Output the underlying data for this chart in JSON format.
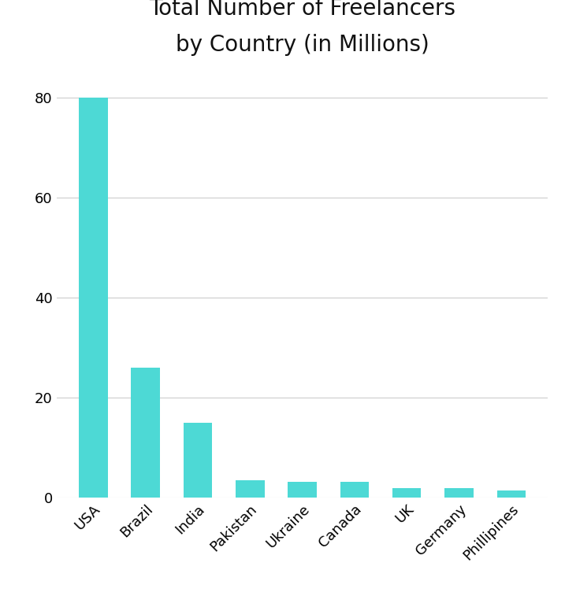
{
  "title": "Total Number of Freelancers\nby Country (in Millions)",
  "categories": [
    "USA",
    "Brazil",
    "India",
    "Pakistan",
    "Ukraine",
    "Canada",
    "UK",
    "Germany",
    "Phillipines"
  ],
  "values": [
    80,
    26,
    15,
    3.5,
    3.2,
    3.2,
    2.0,
    2.0,
    1.5
  ],
  "bar_color": "#4DD9D5",
  "background_color": "#ffffff",
  "ylim": [
    0,
    85
  ],
  "yticks": [
    0,
    20,
    40,
    60,
    80
  ],
  "title_fontsize": 20,
  "tick_fontsize": 13,
  "bar_width": 0.55
}
